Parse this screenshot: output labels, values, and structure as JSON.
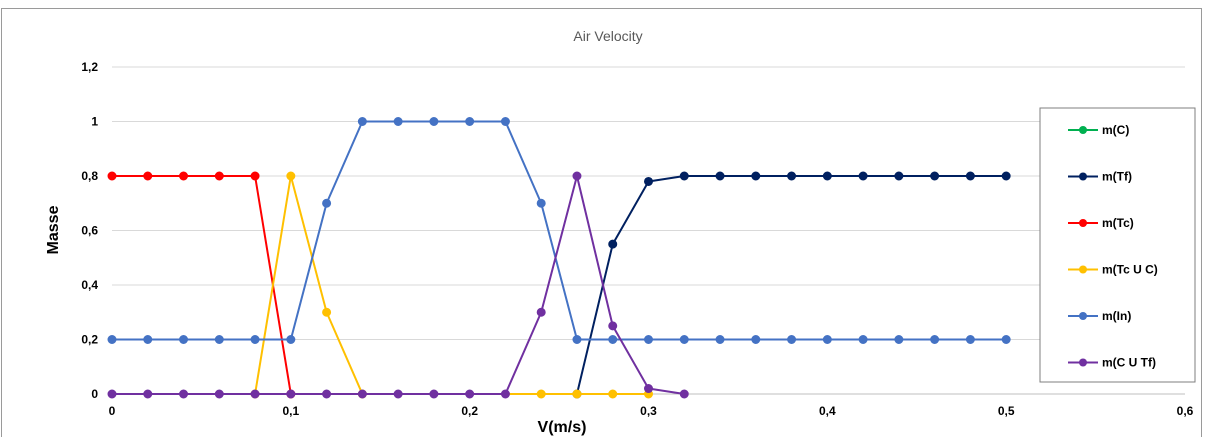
{
  "chart_data": {
    "type": "line",
    "title": "Air Velocity",
    "xlabel": "V(m/s)",
    "ylabel": "Masse",
    "xlim": [
      0,
      0.6
    ],
    "ylim": [
      0,
      1.2
    ],
    "x_ticks": [
      "0",
      "0,1",
      "0,2",
      "0,3",
      "0,4",
      "0,5",
      "0,6"
    ],
    "y_ticks": [
      "0",
      "0,2",
      "0,4",
      "0,6",
      "0,8",
      "1",
      "1,2"
    ],
    "grid": "horizontal",
    "legend_position": "right",
    "series": [
      {
        "name": "m(C)",
        "color": "#00b050",
        "x": [],
        "y": []
      },
      {
        "name": "m(Tf)",
        "color": "#002060",
        "x": [
          0.26,
          0.28,
          0.3,
          0.32,
          0.34,
          0.36,
          0.38,
          0.4,
          0.42,
          0.44,
          0.46,
          0.48,
          0.5
        ],
        "y": [
          0,
          0.55,
          0.78,
          0.8,
          0.8,
          0.8,
          0.8,
          0.8,
          0.8,
          0.8,
          0.8,
          0.8,
          0.8
        ]
      },
      {
        "name": "m(Tc)",
        "color": "#ff0000",
        "x": [
          0,
          0.02,
          0.04,
          0.06,
          0.08,
          0.1
        ],
        "y": [
          0.8,
          0.8,
          0.8,
          0.8,
          0.8,
          0
        ]
      },
      {
        "name": "m(Tc U C)",
        "color": "#ffc000",
        "x": [
          0.08,
          0.1,
          0.12,
          0.14,
          0.24,
          0.26,
          0.28,
          0.3
        ],
        "y": [
          0,
          0.8,
          0.3,
          0,
          0,
          0,
          0,
          0
        ]
      },
      {
        "name": "m(In)",
        "color": "#4472c4",
        "x": [
          0,
          0.02,
          0.04,
          0.06,
          0.08,
          0.1,
          0.12,
          0.14,
          0.16,
          0.18,
          0.2,
          0.22,
          0.24,
          0.26,
          0.28,
          0.3,
          0.32,
          0.34,
          0.36,
          0.38,
          0.4,
          0.42,
          0.44,
          0.46,
          0.48,
          0.5
        ],
        "y": [
          0.2,
          0.2,
          0.2,
          0.2,
          0.2,
          0.2,
          0.7,
          1,
          1,
          1,
          1,
          1,
          0.7,
          0.2,
          0.2,
          0.2,
          0.2,
          0.2,
          0.2,
          0.2,
          0.2,
          0.2,
          0.2,
          0.2,
          0.2,
          0.2
        ]
      },
      {
        "name": "m(C U Tf)",
        "color": "#7030a0",
        "x": [
          0,
          0.02,
          0.04,
          0.06,
          0.08,
          0.1,
          0.12,
          0.14,
          0.16,
          0.18,
          0.2,
          0.22,
          0.24,
          0.26,
          0.28,
          0.3,
          0.32
        ],
        "y": [
          0,
          0,
          0,
          0,
          0,
          0,
          0,
          0,
          0,
          0,
          0,
          0,
          0.3,
          0.8,
          0.25,
          0.02,
          0
        ]
      }
    ]
  }
}
